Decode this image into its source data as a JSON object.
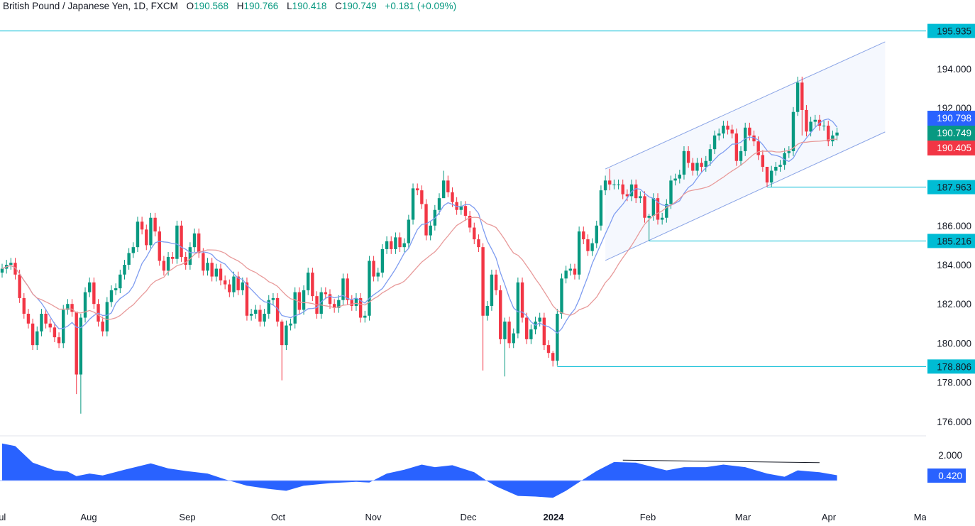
{
  "header": {
    "title": "British Pound / Japanese Yen, 1D, FXCM",
    "o_label": "O",
    "o": "190.568",
    "h_label": "H",
    "h": "190.766",
    "l_label": "L",
    "l": "190.418",
    "c_label": "C",
    "c": "190.749",
    "change": "+0.181 (+0.09%)"
  },
  "chart_data": {
    "type": "candlestick",
    "symbol": "GBPJPY",
    "interval": "1D",
    "colors": {
      "up": "#089981",
      "down": "#f23645",
      "ma_fast": "#7e9cf0",
      "ma_slow": "#e89a9a",
      "levels": "#00bcd4",
      "channel": "#8aa4e6",
      "indicator": "#2962ff"
    },
    "closes": [
      183.8,
      184.0,
      184.1,
      183.5,
      182.3,
      181.5,
      181.0,
      179.9,
      180.6,
      181.5,
      181.0,
      180.8,
      180.3,
      180.0,
      181.7,
      182.0,
      181.6,
      178.4,
      181.3,
      182.6,
      183.1,
      182.0,
      181.1,
      180.6,
      182.1,
      182.7,
      182.8,
      183.5,
      184.0,
      184.6,
      184.9,
      186.2,
      185.8,
      185.0,
      186.4,
      185.7,
      184.2,
      183.7,
      184.4,
      184.3,
      186.0,
      184.4,
      184.0,
      184.9,
      185.6,
      184.6,
      183.7,
      184.1,
      183.4,
      183.8,
      183.2,
      183.0,
      182.6,
      183.4,
      182.7,
      183.1,
      181.4,
      181.5,
      181.7,
      181.1,
      181.5,
      182.2,
      182.3,
      181.1,
      179.9,
      180.9,
      181.0,
      182.6,
      181.7,
      182.7,
      183.6,
      182.4,
      181.5,
      182.6,
      182.5,
      182.0,
      181.8,
      182.2,
      183.3,
      182.2,
      181.9,
      182.3,
      181.3,
      181.4,
      184.2,
      183.4,
      183.6,
      184.8,
      185.2,
      184.8,
      185.4,
      184.9,
      185.1,
      186.3,
      187.9,
      187.8,
      187.1,
      185.5,
      186.0,
      186.8,
      187.4,
      188.3,
      187.7,
      187.2,
      186.8,
      187.0,
      186.5,
      185.9,
      185.3,
      184.9,
      181.4,
      181.9,
      183.5,
      182.7,
      180.2,
      181.1,
      180.0,
      180.5,
      183.1,
      181.3,
      180.2,
      180.7,
      181.1,
      181.3,
      179.9,
      179.5,
      179.1,
      181.5,
      183.3,
      183.7,
      183.8,
      183.5,
      185.7,
      185.3,
      184.7,
      185.1,
      186.0,
      187.8,
      188.3,
      188.1,
      188.1,
      188.1,
      187.6,
      187.5,
      188.1,
      187.4,
      187.5,
      186.4,
      186.5,
      187.4,
      186.3,
      186.4,
      187.1,
      188.3,
      188.4,
      188.6,
      189.8,
      189.2,
      188.8,
      189.2,
      189.0,
      189.3,
      189.9,
      190.6,
      190.7,
      191.1,
      190.9,
      190.7,
      189.3,
      189.8,
      191.0,
      190.6,
      190.3,
      189.6,
      189.0,
      188.2,
      188.8,
      189.0,
      189.1,
      189.7,
      189.8,
      191.8,
      193.3,
      191.9,
      190.8,
      191.3,
      191.4,
      191.1,
      191.1,
      190.3,
      190.6,
      190.749
    ],
    "extremes": [
      {
        "bar": 17,
        "high": 181.6,
        "low": 177.4
      },
      {
        "bar": 18,
        "high": 181.5,
        "low": 176.4
      },
      {
        "bar": 64,
        "high": 181.2,
        "low": 178.1
      },
      {
        "bar": 101,
        "high": 188.8,
        "low": 187.6
      },
      {
        "bar": 110,
        "high": 185.1,
        "low": 178.6
      },
      {
        "bar": 115,
        "high": 181.3,
        "low": 178.3
      },
      {
        "bar": 126,
        "high": 179.6,
        "low": 178.806
      },
      {
        "bar": 139,
        "high": 188.9,
        "low": 187.8
      },
      {
        "bar": 148,
        "high": 186.6,
        "low": 185.216
      },
      {
        "bar": 175,
        "high": 189.0,
        "low": 187.963
      },
      {
        "bar": 182,
        "high": 193.6,
        "low": 191.6
      },
      {
        "bar": 183,
        "high": 193.6,
        "low": 190.6
      }
    ],
    "price_axis": {
      "range": [
        175.3,
        197.5
      ],
      "ticks": [
        "194.000",
        "192.000",
        "186.000",
        "184.000",
        "182.000",
        "180.000",
        "178.000",
        "176.000"
      ]
    },
    "price_tags": [
      {
        "value": "190.798",
        "color": "#2962ff"
      },
      {
        "value": "190.749",
        "color": "#089981"
      },
      {
        "value": "190.405",
        "color": "#f23645"
      }
    ],
    "horizontal_levels": [
      {
        "price": 195.935,
        "label": "195.935",
        "from_bar": null
      },
      {
        "price": 187.963,
        "label": "187.963",
        "from_bar": 175
      },
      {
        "price": 185.216,
        "label": "185.216",
        "from_bar": 148
      },
      {
        "price": 178.806,
        "label": "178.806",
        "from_bar": 127
      }
    ],
    "channel": {
      "upper": [
        {
          "bar": 138,
          "price": 188.89
        },
        {
          "bar": 202,
          "price": 195.38
        }
      ],
      "lower": [
        {
          "bar": 138,
          "price": 184.22
        },
        {
          "bar": 202,
          "price": 190.78
        }
      ]
    },
    "time_axis": [
      {
        "label": "Jul",
        "bold": false
      },
      {
        "label": "Aug",
        "bold": false
      },
      {
        "label": "Sep",
        "bold": false
      },
      {
        "label": "Oct",
        "bold": false
      },
      {
        "label": "Nov",
        "bold": false
      },
      {
        "label": "Dec",
        "bold": false
      },
      {
        "label": "2024",
        "bold": true
      },
      {
        "label": "Feb",
        "bold": false
      },
      {
        "label": "Mar",
        "bold": false
      },
      {
        "label": "Apr",
        "bold": false
      },
      {
        "label": "May",
        "bold": false
      }
    ],
    "indicator": {
      "type": "area",
      "axis_ticks": [
        "2.000"
      ],
      "current_value": "0.420",
      "points": [
        [
          0,
          2.9
        ],
        [
          3,
          2.7
        ],
        [
          7,
          1.4
        ],
        [
          12,
          0.8
        ],
        [
          15,
          0.7
        ],
        [
          17,
          0.35
        ],
        [
          20,
          0.55
        ],
        [
          23,
          0.4
        ],
        [
          28,
          0.85
        ],
        [
          34,
          1.35
        ],
        [
          38,
          0.95
        ],
        [
          42,
          0.75
        ],
        [
          47,
          0.55
        ],
        [
          51,
          0.1
        ],
        [
          56,
          -0.4
        ],
        [
          61,
          -0.65
        ],
        [
          65,
          -0.8
        ],
        [
          69,
          -0.4
        ],
        [
          75,
          -0.2
        ],
        [
          81,
          -0.1
        ],
        [
          84,
          -0.15
        ],
        [
          88,
          0.55
        ],
        [
          92,
          0.85
        ],
        [
          96,
          1.25
        ],
        [
          99,
          1.05
        ],
        [
          103,
          1.2
        ],
        [
          108,
          0.65
        ],
        [
          111,
          -0.05
        ],
        [
          113,
          -0.45
        ],
        [
          118,
          -1.2
        ],
        [
          122,
          -1.25
        ],
        [
          126,
          -1.35
        ],
        [
          129,
          -0.8
        ],
        [
          133,
          0.1
        ],
        [
          136,
          0.75
        ],
        [
          140,
          1.45
        ],
        [
          145,
          1.4
        ],
        [
          149,
          1.05
        ],
        [
          152,
          0.8
        ],
        [
          156,
          1.05
        ],
        [
          161,
          1.05
        ],
        [
          165,
          1.25
        ],
        [
          170,
          1.05
        ],
        [
          175,
          0.55
        ],
        [
          179,
          0.3
        ],
        [
          182,
          0.8
        ],
        [
          187,
          0.65
        ],
        [
          191,
          0.42
        ]
      ],
      "trendline": [
        {
          "bar": 142,
          "value": 1.6
        },
        {
          "bar": 187,
          "value": 1.4
        }
      ]
    }
  }
}
